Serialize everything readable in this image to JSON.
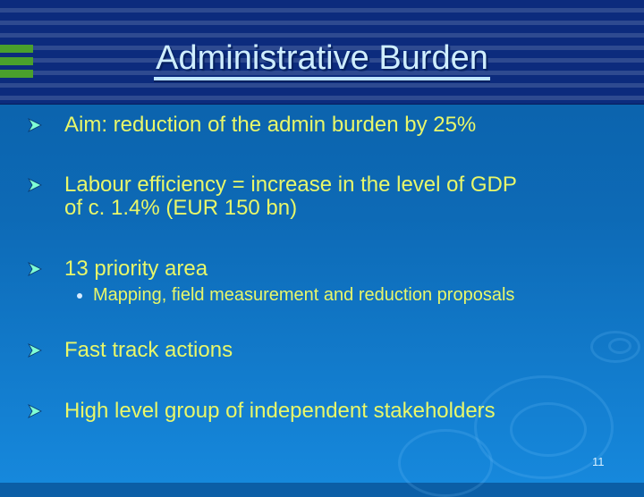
{
  "slide": {
    "title": "Administrative Burden",
    "bullets": [
      {
        "text": "Aim: reduction of the admin burden by 25%"
      },
      {
        "text": "Labour efficiency  = increase in the level of GDP",
        "text2": "of c. 1.4% (EUR 150 bn)"
      },
      {
        "text": "13 priority area",
        "sub": [
          "Mapping, field measurement and reduction proposals"
        ]
      },
      {
        "text": "Fast track actions"
      },
      {
        "text": "High level group of independent stakeholders"
      }
    ],
    "page_number": "11"
  },
  "colors": {
    "text": "#e8f76a",
    "header": "#0c2b7d",
    "accent": "#4aa02c",
    "background": "#0d6ab6"
  }
}
